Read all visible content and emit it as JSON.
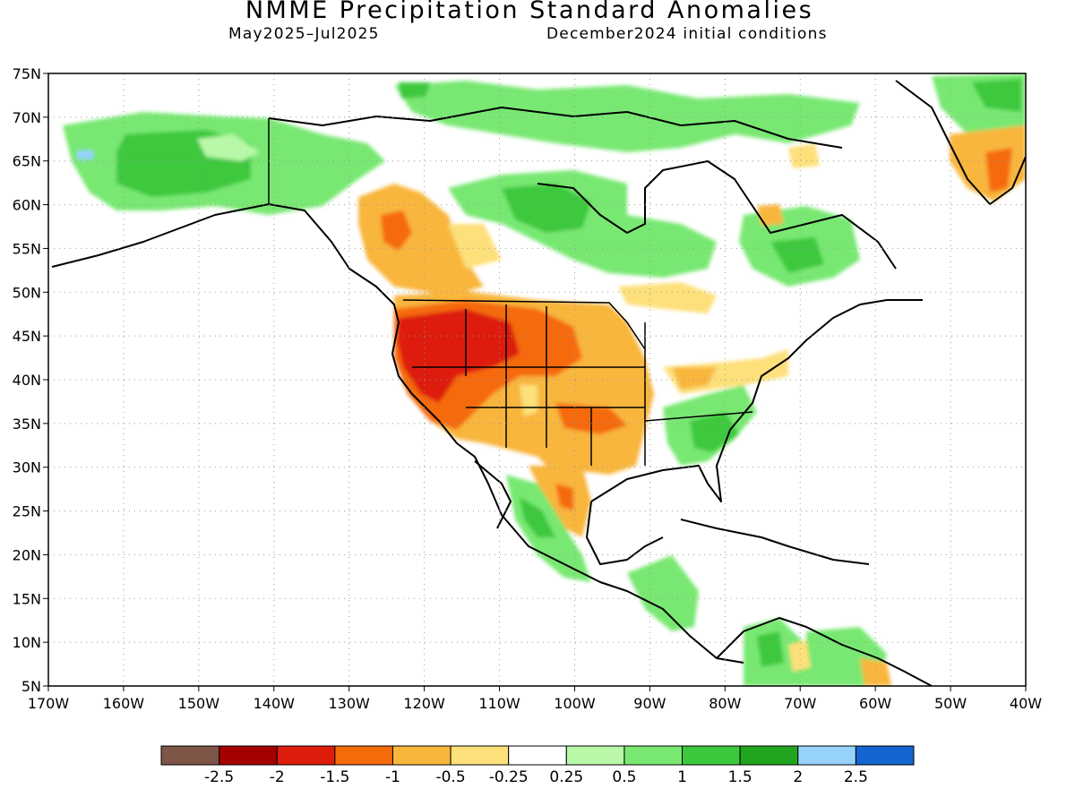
{
  "title": "NMME Precipitation Standard Anomalies",
  "subtitle_left": "May2025–Jul2025",
  "subtitle_right": "December2024 initial conditions",
  "map": {
    "lat_ticks": [
      "75N",
      "70N",
      "65N",
      "60N",
      "55N",
      "50N",
      "45N",
      "40N",
      "35N",
      "30N",
      "25N",
      "20N",
      "15N",
      "10N",
      "5N"
    ],
    "lon_ticks": [
      "170W",
      "160W",
      "150W",
      "140W",
      "130W",
      "120W",
      "110W",
      "100W",
      "90W",
      "80W",
      "70W",
      "60W",
      "50W",
      "40W"
    ],
    "lon_range": [
      -170,
      -40
    ],
    "lat_range": [
      5,
      75
    ],
    "grid": "dotted"
  },
  "legend": {
    "labels": [
      "-2.5",
      "-2",
      "-1.5",
      "-1",
      "-0.5",
      "-0.25",
      "0.25",
      "0.5",
      "1",
      "1.5",
      "2",
      "2.5"
    ],
    "colors": [
      "#7f5548",
      "#a50000",
      "#dd1c0c",
      "#f56b0a",
      "#f8b63c",
      "#fde07a",
      "#ffffff",
      "#b9f8a8",
      "#78e872",
      "#3cc83c",
      "#22a51e",
      "#96d2fa",
      "#1464d2"
    ]
  }
}
